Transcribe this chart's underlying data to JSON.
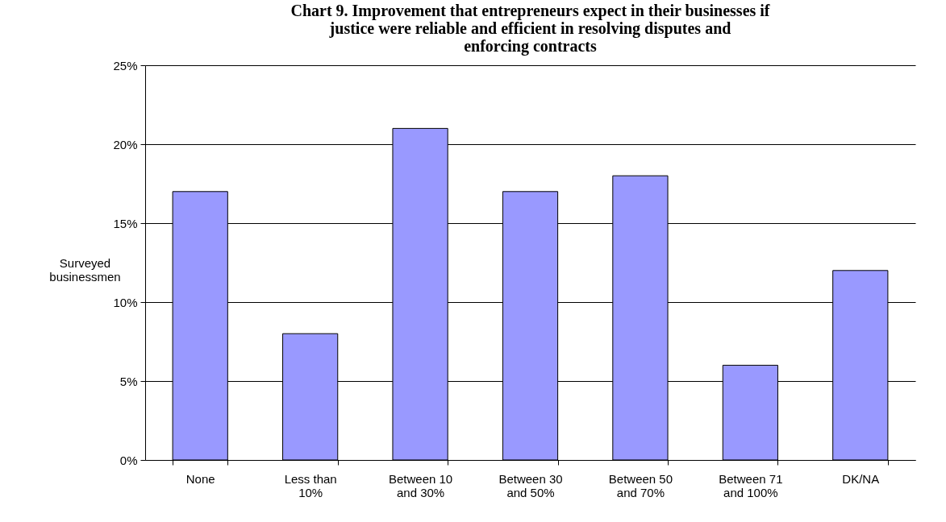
{
  "chart_data": {
    "type": "bar",
    "title": "Chart 9.  Improvement that entrepreneurs expect in their businesses if justice were reliable and efficient in resolving disputes and enforcing contracts",
    "ylabel": "Surveyed businessmen",
    "categories": [
      "None",
      "Less than 10%",
      "Between 10 and 30%",
      "Between 30 and 50%",
      "Between 50 and 70%",
      "Between 71 and 100%",
      "DK/NA"
    ],
    "values": [
      17,
      8,
      21,
      17,
      18,
      6,
      12
    ],
    "color": "#9999ff",
    "ylim": [
      0,
      25
    ],
    "yticks": [
      {
        "value": 0,
        "label": "0%"
      },
      {
        "value": 5,
        "label": "5%"
      },
      {
        "value": 10,
        "label": "10%"
      },
      {
        "value": 15,
        "label": "15%"
      },
      {
        "value": 20,
        "label": "20%"
      },
      {
        "value": 25,
        "label": "25%"
      }
    ],
    "grid": "y"
  }
}
